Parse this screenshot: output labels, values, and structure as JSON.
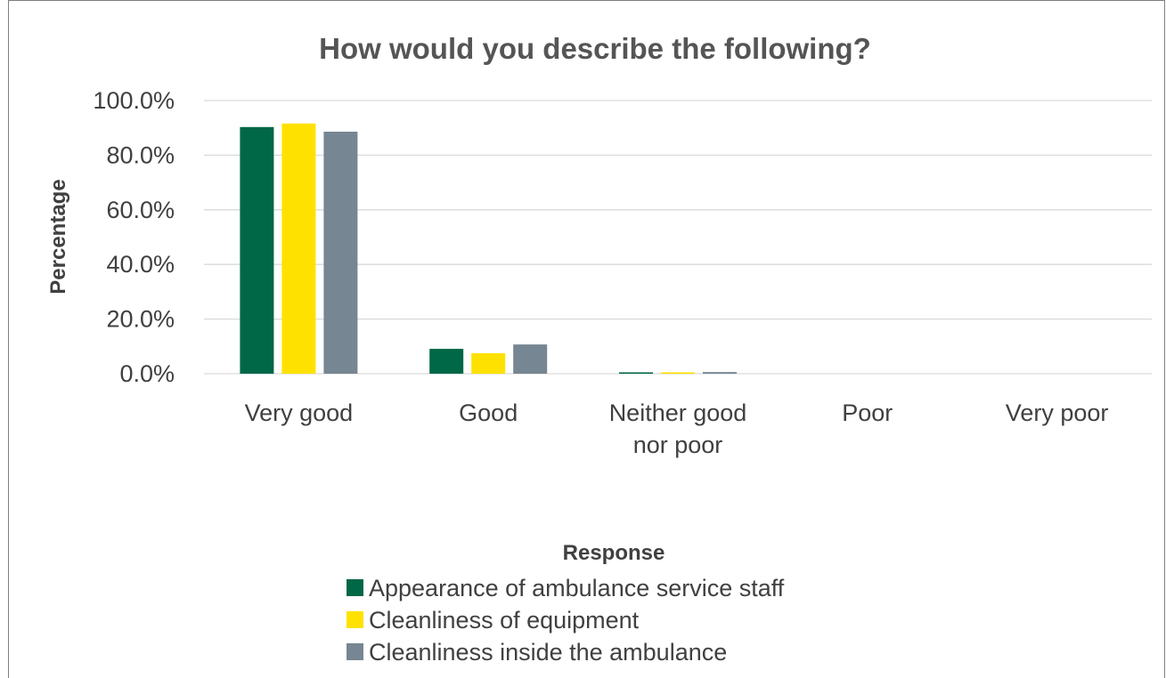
{
  "chart_data": {
    "type": "bar",
    "title": "How would you describe the following?",
    "xlabel": "Response",
    "ylabel": "Percentage",
    "categories": [
      [
        "Very good"
      ],
      [
        "Good"
      ],
      [
        "Neither good",
        "nor poor"
      ],
      [
        "Poor"
      ],
      [
        "Very poor"
      ]
    ],
    "yticks": [
      "0.0%",
      "20.0%",
      "40.0%",
      "60.0%",
      "80.0%",
      "100.0%"
    ],
    "ylim": [
      0,
      100
    ],
    "grid": true,
    "legend_position": "bottom",
    "series": [
      {
        "name": "Appearance of ambulance service staff",
        "color": "#006747",
        "values": [
          90.3,
          9.1,
          0.5,
          0.0,
          0.0
        ]
      },
      {
        "name": "Cleanliness of equipment",
        "color": "#ffe100",
        "values": [
          91.6,
          7.5,
          0.5,
          0.0,
          0.0
        ]
      },
      {
        "name": "Cleanliness inside the ambulance",
        "color": "#768692",
        "values": [
          88.6,
          10.7,
          0.6,
          0.0,
          0.0
        ]
      }
    ]
  }
}
